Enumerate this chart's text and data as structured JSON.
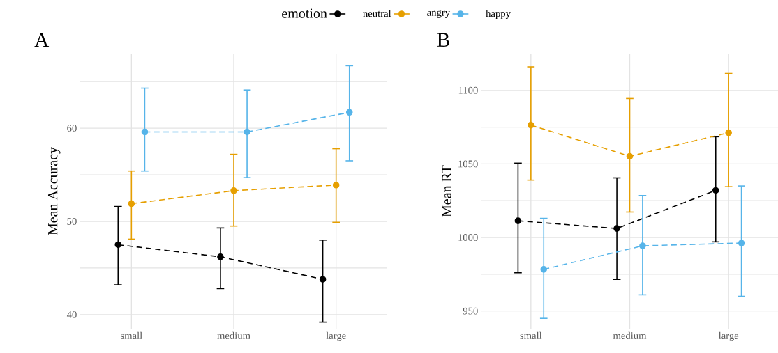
{
  "chart_data": [
    {
      "type": "line",
      "title": "A",
      "ylabel": "Mean Accuracy",
      "legend_title": "emotion",
      "legend": "top",
      "categories": [
        "small",
        "medium",
        "large"
      ],
      "ylim": [
        38.5,
        68
      ],
      "yticks": [
        40,
        {
          "value": 45,
          "label": null
        },
        50,
        {
          "value": 55,
          "label": null
        },
        60,
        {
          "value": 65,
          "label": null
        }
      ],
      "grid": true,
      "marker": "circle",
      "line_style": "dashed",
      "series": [
        {
          "name": "neutral",
          "color": "#000000",
          "values": [
            47.5,
            46.2,
            43.8
          ],
          "errors": [
            [
              43.2,
              51.6
            ],
            [
              42.8,
              49.3
            ],
            [
              39.2,
              48.0
            ]
          ]
        },
        {
          "name": "angry",
          "color": "#e69f00",
          "values": [
            51.9,
            53.3,
            53.9
          ],
          "errors": [
            [
              48.1,
              55.4
            ],
            [
              49.5,
              57.2
            ],
            [
              49.9,
              57.8
            ]
          ]
        },
        {
          "name": "happy",
          "color": "#56b4e9",
          "values": [
            59.6,
            59.6,
            61.7
          ],
          "errors": [
            [
              55.4,
              64.3
            ],
            [
              54.7,
              64.1
            ],
            [
              56.5,
              66.7
            ]
          ]
        }
      ]
    },
    {
      "type": "line",
      "title": "B",
      "ylabel": "Mean RT",
      "categories": [
        "small",
        "medium",
        "large"
      ],
      "ylim": [
        938,
        1125
      ],
      "yticks": [
        950,
        {
          "value": 975,
          "label": null
        },
        1000,
        {
          "value": 1025,
          "label": null
        },
        1050,
        {
          "value": 1075,
          "label": null
        },
        1100
      ],
      "grid": true,
      "marker": "circle",
      "line_style": "dashed",
      "series": [
        {
          "color": "#000000",
          "values": [
            1011.3,
            1006.1,
            1032
          ],
          "errors": [
            [
              976,
              1050.5
            ],
            [
              971.5,
              1040.5
            ],
            [
              997,
              1068.5
            ]
          ]
        },
        {
          "color": "#e69f00",
          "values": [
            1076.4,
            1055.2,
            1071.2
          ],
          "errors": [
            [
              1039,
              1116
            ],
            [
              1017.3,
              1094.5
            ],
            [
              1034.5,
              1111.5
            ]
          ]
        },
        {
          "color": "#56b4e9",
          "values": [
            978.3,
            994.3,
            996.2
          ],
          "errors": [
            [
              945,
              1013
            ],
            [
              961,
              1028.5
            ],
            [
              960,
              1035
            ]
          ]
        }
      ]
    }
  ]
}
